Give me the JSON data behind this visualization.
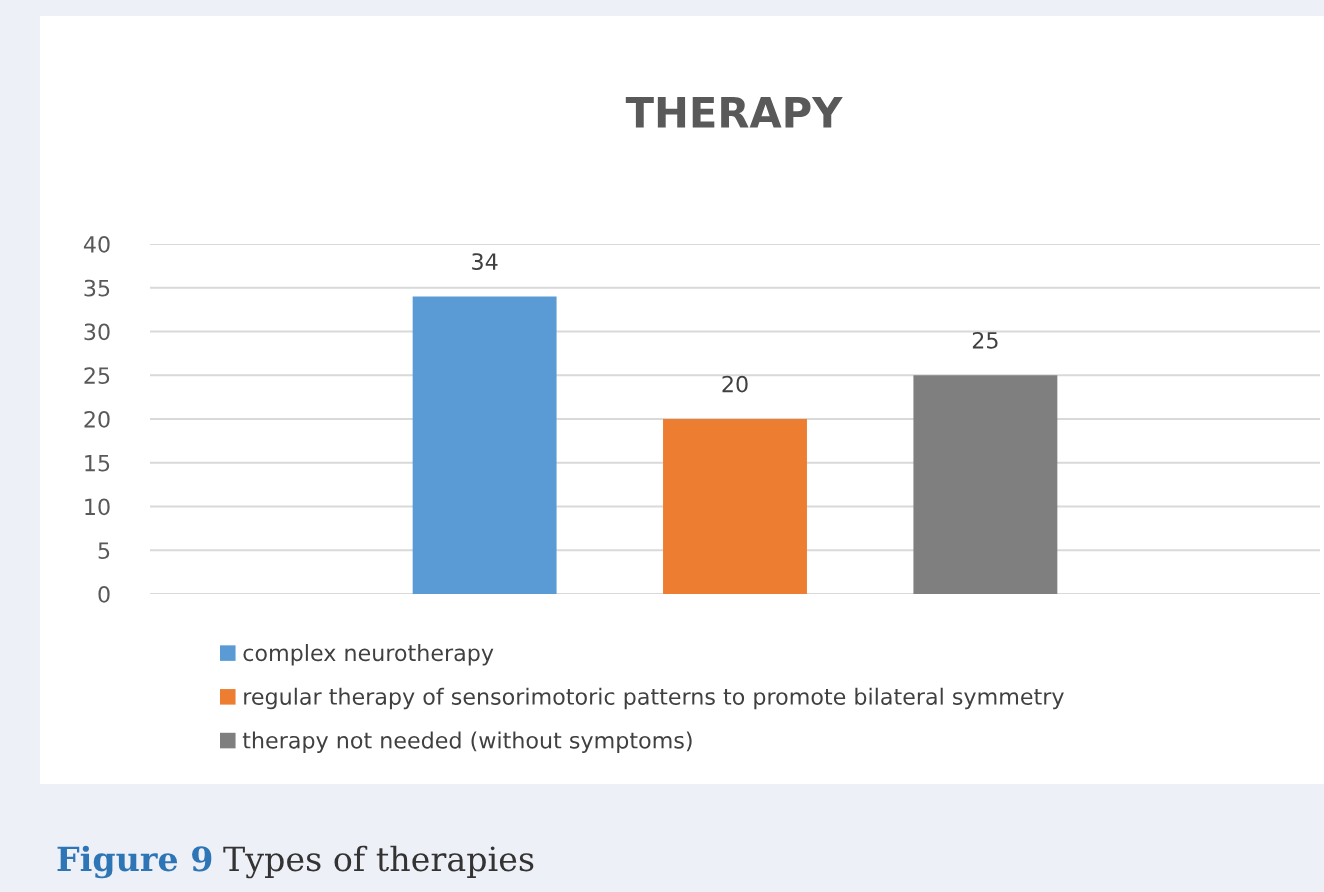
{
  "chart_data": {
    "type": "bar",
    "title": "THERAPY",
    "categories": [
      null
    ],
    "series": [
      {
        "name": "complex neurotherapy",
        "color": "#5b9bd5",
        "values": [
          34
        ]
      },
      {
        "name": "regular therapy of sensorimotoric patterns to promote bilateral symmetry",
        "color": "#ed7d31",
        "values": [
          20
        ]
      },
      {
        "name": "therapy not needed (without symptoms)",
        "color": "#7f7f7f",
        "values": [
          25
        ]
      }
    ],
    "ylim": [
      0,
      40
    ],
    "yticks": [
      0,
      5,
      10,
      15,
      20,
      25,
      30,
      35,
      40
    ],
    "grid": "y",
    "legend": "bottom",
    "data_labels": true,
    "annotations": [
      "Figure 9",
      "Types of therapies"
    ]
  }
}
